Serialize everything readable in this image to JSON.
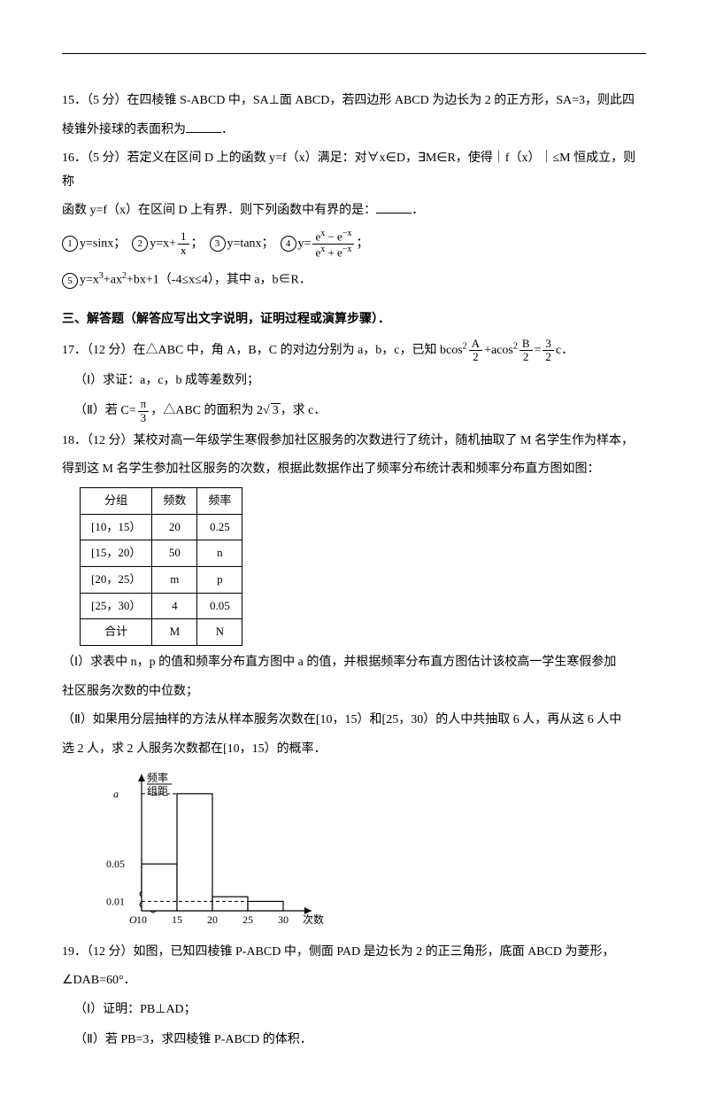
{
  "q15": {
    "label": "15．（5 分）在四棱锥 S-ABCD 中，SA⊥面 ABCD，若四边形 ABCD 为边长为 2 的正方形，SA=3，则此四",
    "label2": "棱锥外接球的表面积为",
    "blank_suffix": "．"
  },
  "q16": {
    "line1": "16．（5 分）若定义在区间 D 上的函数 y=f（x）满足：对∀x∈D，∃M∈R，使得｜f（x）｜≤M 恒成立，则称",
    "line2": "函数 y=f（x）在区间 D 上有界．则下列函数中有界的是：",
    "opt1_label": "y=sinx；",
    "opt2_prefix": "y=x+",
    "opt2_num": "1",
    "opt2_den": "x",
    "opt2_suffix": "；",
    "opt3_label": "y=tanx；",
    "opt4_prefix": "y=",
    "opt4_num": "e",
    "opt4_num_sup": "x",
    "opt4_num_mid": " − e",
    "opt4_num_sup2": "−x",
    "opt4_den": "e",
    "opt4_den_sup": "x",
    "opt4_den_mid": " + e",
    "opt4_den_sup2": "−x",
    "opt4_suffix": "；",
    "opt5_pre": "y=x",
    "opt5_rest": "+ax",
    "opt5_rest2": "+bx+1（-4≤x≤4），其中 a，b∈R．"
  },
  "section3": "三、解答题（解答应写出文字说明，证明过程或演算步骤）．",
  "q17": {
    "line1_pre": "17．（12 分）在△ABC 中，角 A，B，C 的对边分别为 a，b，c，已知 bcos",
    "half_A_num": "A",
    "half_A_den": "2",
    "mid": "+acos",
    "half_B_num": "B",
    "half_B_den": "2",
    "eq": "=",
    "three_half_num": "3",
    "three_half_den": "2",
    "tail": "c．",
    "part1": "（Ⅰ）求证：a，c，b 成等差数列；",
    "part2_pre": "（Ⅱ）若 C=",
    "pi_num": "π",
    "pi_den": "3",
    "part2_mid": "，△ABC 的面积为 2",
    "sqrt3": "3",
    "part2_tail": "，求 c．"
  },
  "q18": {
    "line1": "18．（12 分）某校对高一年级学生寒假参加社区服务的次数进行了统计，随机抽取了 M 名学生作为样本，",
    "line2": "得到这 M 名学生参加社区服务的次数，根据此数据作出了频率分布统计表和频率分布直方图如图：",
    "headers": [
      "分组",
      "频数",
      "频率"
    ],
    "rows": [
      [
        "[10，15）",
        "20",
        "0.25"
      ],
      [
        "[15，20）",
        "50",
        "n"
      ],
      [
        "[20，25）",
        "m",
        "p"
      ],
      [
        "[25，30）",
        "4",
        "0.05"
      ],
      [
        "合计",
        "M",
        "N"
      ]
    ],
    "part1": "（Ⅰ）求表中 n，p 的值和频率分布直方图中 a 的值，并根据频率分布直方图估计该校高一学生寒假参加",
    "part1b": "社区服务次数的中位数；",
    "part2": "（Ⅱ）如果用分层抽样的方法从样本服务次数在[10，15）和[25，30）的人中共抽取 6 人，再从这 6 人中",
    "part2b": "选 2 人，求 2 人服务次数都在[10，15）的概率．",
    "hist": {
      "y_label_top": "频率",
      "y_label_bot": "组距",
      "a_label": "a",
      "y_ticks": [
        "0.05",
        "0.01"
      ],
      "x_ticks": [
        "10",
        "15",
        "20",
        "25",
        "30"
      ],
      "x_label": "次数",
      "origin": "O",
      "bars": [
        {
          "x": 10,
          "h": 0.05
        },
        {
          "x": 15,
          "h": 0.125
        },
        {
          "x": 20,
          "h": 0.015
        },
        {
          "x": 25,
          "h": 0.01
        }
      ],
      "colors": {
        "axis": "#000",
        "bar_fill": "#ffffff",
        "bar_stroke": "#000",
        "dash": "#000"
      }
    }
  },
  "q19": {
    "line1": "19．（12 分）如图，已知四棱锥 P-ABCD 中，侧面 PAD 是边长为 2 的正三角形，底面 ABCD 为菱形，",
    "line2": "∠DAB=60°．",
    "part1": "（Ⅰ）证明：PB⊥AD；",
    "part2": "（Ⅱ）若 PB=3，求四棱锥 P-ABCD 的体积．"
  }
}
